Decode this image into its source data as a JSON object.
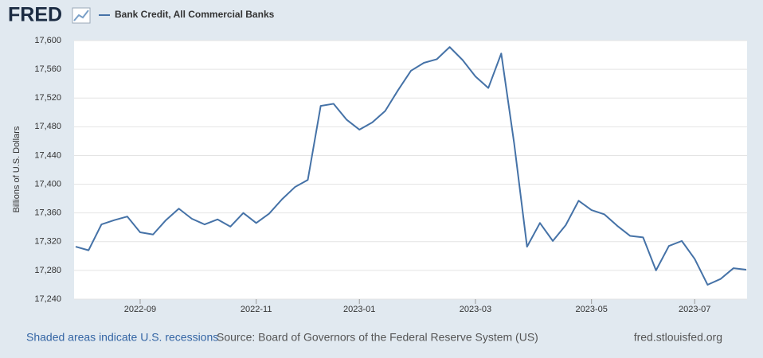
{
  "logo": "FRED",
  "chart_data": {
    "type": "line",
    "y_label": "Billions of U.S. Dollars",
    "x": [
      null,
      null,
      null,
      null,
      null,
      "2022-09",
      null,
      null,
      null,
      null,
      null,
      null,
      null,
      null,
      "2022-11",
      null,
      null,
      null,
      null,
      null,
      null,
      null,
      "2023-01",
      null,
      null,
      null,
      null,
      null,
      null,
      null,
      null,
      "2023-03",
      null,
      null,
      null,
      null,
      null,
      null,
      null,
      null,
      "2023-05",
      null,
      null,
      null,
      null,
      null,
      null,
      null,
      "2023-07",
      null,
      null,
      null,
      null
    ],
    "series": [
      {
        "name": "Bank Credit, All Commercial Banks",
        "color": "#4572a7",
        "values": [
          17313,
          17308,
          17344,
          17350,
          17355,
          17333,
          17330,
          17350,
          17366,
          17352,
          17344,
          17351,
          17341,
          17360,
          17346,
          17359,
          17379,
          17396,
          17406,
          17509,
          17512,
          17490,
          17476,
          17486,
          17502,
          17531,
          17558,
          17569,
          17574,
          17591,
          17573,
          17550,
          17534,
          17582,
          17457,
          17313,
          17346,
          17321,
          17343,
          17377,
          17364,
          17358,
          17342,
          17328,
          17326,
          17280,
          17314,
          17321,
          17296,
          17260,
          17268,
          17283,
          17281
        ]
      }
    ],
    "ylim": [
      17240,
      17600
    ],
    "yticks": [
      {
        "value": 17240,
        "label": "17,240"
      },
      {
        "value": 17280,
        "label": "17,280"
      },
      {
        "value": 17320,
        "label": "17,320"
      },
      {
        "value": 17360,
        "label": "17,360"
      },
      {
        "value": 17400,
        "label": "17,400"
      },
      {
        "value": 17440,
        "label": "17,440"
      },
      {
        "value": 17480,
        "label": "17,480"
      },
      {
        "value": 17520,
        "label": "17,520"
      },
      {
        "value": 17560,
        "label": "17,560"
      },
      {
        "value": 17600,
        "label": "17,600"
      }
    ],
    "grid": true
  },
  "footer": {
    "recessions": "Shaded areas indicate U.S. recessions",
    "source": "Source: Board of Governors of the Federal Reserve System (US)",
    "site": "fred.stlouisfed.org"
  }
}
